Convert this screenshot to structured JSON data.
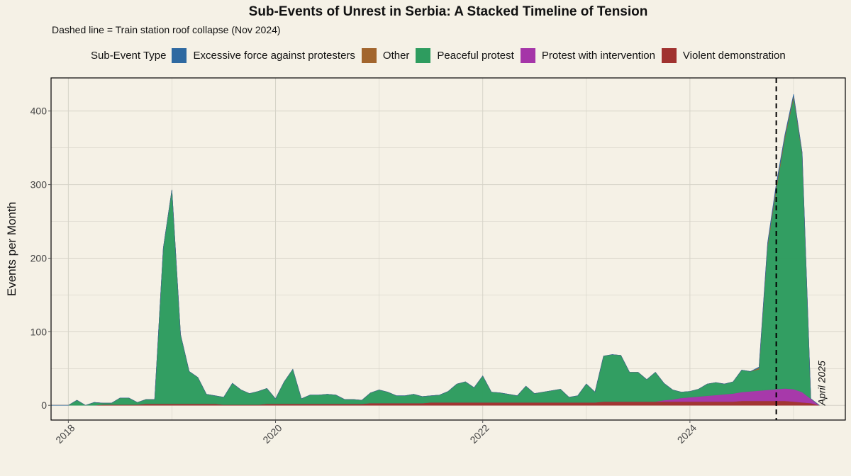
{
  "chart_data": {
    "type": "area",
    "stacked": true,
    "title": "Sub-Events of Unrest in Serbia: A Stacked Timeline of Tension",
    "subtitle": "Dashed line = Train station roof collapse (Nov 2024)",
    "xlabel": "",
    "ylabel": "Events per Month",
    "legend_title": "Sub-Event Type",
    "legend_position": "top",
    "grid": true,
    "x_range": [
      "2017-11",
      "2025-07"
    ],
    "ylim": [
      -20,
      445
    ],
    "x_ticks": [
      {
        "date": "2018-01",
        "label": "2018"
      },
      {
        "date": "2020-01",
        "label": "2020"
      },
      {
        "date": "2022-01",
        "label": "2022"
      },
      {
        "date": "2024-01",
        "label": "2024"
      }
    ],
    "y_ticks": [
      0,
      100,
      200,
      300,
      400
    ],
    "vline": {
      "date": "2024-11"
    },
    "annotation": {
      "date": "2025-04",
      "text": "April 2025"
    },
    "colors": {
      "background": "#f5f1e6",
      "grid": "#d6d3c8",
      "Excessive force against protesters": "#2e69a1",
      "Other": "#a2652d",
      "Peaceful protest": "#2e9c5f",
      "Protest with intervention": "#a535a8",
      "Violent demonstration": "#a0322f"
    },
    "stack_order": [
      "Violent demonstration",
      "Protest with intervention",
      "Peaceful protest",
      "Other",
      "Excessive force against protesters"
    ],
    "legend_order": [
      "Excessive force against protesters",
      "Other",
      "Peaceful protest",
      "Protest with intervention",
      "Violent demonstration"
    ],
    "x": [
      "2017-11",
      "2018-01",
      "2018-02",
      "2018-03",
      "2018-04",
      "2018-05",
      "2018-06",
      "2018-07",
      "2018-08",
      "2018-09",
      "2018-10",
      "2018-11",
      "2018-12",
      "2019-01",
      "2019-02",
      "2019-03",
      "2019-04",
      "2019-05",
      "2019-06",
      "2019-07",
      "2019-08",
      "2019-09",
      "2019-10",
      "2019-11",
      "2019-12",
      "2020-01",
      "2020-02",
      "2020-03",
      "2020-04",
      "2020-05",
      "2020-06",
      "2020-07",
      "2020-08",
      "2020-09",
      "2020-10",
      "2020-11",
      "2020-12",
      "2021-01",
      "2021-02",
      "2021-03",
      "2021-04",
      "2021-05",
      "2021-06",
      "2021-07",
      "2021-08",
      "2021-09",
      "2021-10",
      "2021-11",
      "2021-12",
      "2022-01",
      "2022-02",
      "2022-03",
      "2022-04",
      "2022-05",
      "2022-06",
      "2022-07",
      "2022-08",
      "2022-09",
      "2022-10",
      "2022-11",
      "2022-12",
      "2023-01",
      "2023-02",
      "2023-03",
      "2023-04",
      "2023-05",
      "2023-06",
      "2023-07",
      "2023-08",
      "2023-09",
      "2023-10",
      "2023-11",
      "2023-12",
      "2024-01",
      "2024-02",
      "2024-03",
      "2024-04",
      "2024-05",
      "2024-06",
      "2024-07",
      "2024-08",
      "2024-09",
      "2024-10",
      "2024-11",
      "2024-12",
      "2025-01",
      "2025-02",
      "2025-03",
      "2025-04"
    ],
    "series": [
      {
        "name": "Excessive force against protesters",
        "values": [
          0,
          0,
          0,
          0,
          0,
          0,
          0,
          0,
          0,
          0,
          0,
          0,
          0,
          0,
          0,
          0,
          0,
          0,
          0,
          0,
          0,
          0,
          0,
          0,
          0,
          0,
          0,
          0,
          0,
          0,
          0,
          0,
          0,
          0,
          0,
          0,
          0,
          0,
          0,
          0,
          0,
          0,
          0,
          0,
          0,
          0,
          0,
          0,
          0,
          0,
          0,
          0,
          0,
          0,
          0,
          0,
          0,
          0,
          0,
          0,
          0,
          0,
          0,
          0,
          0,
          0,
          0,
          0,
          0,
          0,
          0,
          0,
          0,
          0,
          0,
          0,
          0,
          0,
          0,
          0,
          0,
          1,
          2,
          4,
          2,
          2,
          1,
          0,
          0
        ]
      },
      {
        "name": "Other",
        "values": [
          0,
          0,
          0,
          0,
          0,
          0,
          0,
          0,
          0,
          0,
          0,
          0,
          0,
          0,
          0,
          0,
          0,
          0,
          0,
          0,
          0,
          0,
          0,
          0,
          0,
          0,
          0,
          0,
          0,
          0,
          0,
          0,
          0,
          0,
          0,
          0,
          0,
          0,
          0,
          0,
          0,
          0,
          0,
          0,
          0,
          0,
          0,
          0,
          0,
          0,
          0,
          0,
          0,
          0,
          0,
          0,
          0,
          0,
          0,
          0,
          0,
          0,
          0,
          0,
          0,
          0,
          0,
          0,
          0,
          0,
          0,
          0,
          0,
          0,
          0,
          0,
          0,
          0,
          0,
          0,
          0,
          2,
          3,
          4,
          3,
          3,
          2,
          0,
          0
        ]
      },
      {
        "name": "Peaceful protest",
        "values": [
          0,
          0,
          7,
          0,
          4,
          2,
          2,
          9,
          9,
          3,
          6,
          6,
          212,
          291,
          94,
          44,
          36,
          13,
          11,
          10,
          29,
          20,
          15,
          18,
          21,
          7,
          30,
          47,
          7,
          12,
          12,
          13,
          12,
          6,
          6,
          5,
          14,
          18,
          15,
          10,
          10,
          12,
          9,
          9,
          10,
          15,
          25,
          28,
          20,
          36,
          14,
          13,
          11,
          9,
          22,
          12,
          14,
          16,
          18,
          7,
          9,
          25,
          14,
          62,
          64,
          63,
          40,
          40,
          30,
          40,
          23,
          13,
          8,
          8,
          10,
          16,
          17,
          14,
          16,
          30,
          27,
          29,
          195,
          271,
          340,
          396,
          323,
          0,
          0
        ]
      },
      {
        "name": "Protest with intervention",
        "values": [
          0,
          0,
          0,
          0,
          0,
          0,
          0,
          0,
          0,
          0,
          0,
          0,
          0,
          0,
          0,
          0,
          0,
          0,
          0,
          0,
          0,
          0,
          0,
          0,
          0,
          0,
          0,
          0,
          0,
          0,
          0,
          0,
          0,
          0,
          0,
          0,
          0,
          0,
          0,
          0,
          0,
          0,
          0,
          0,
          0,
          0,
          0,
          0,
          0,
          0,
          0,
          0,
          0,
          0,
          0,
          0,
          0,
          0,
          0,
          0,
          0,
          0,
          0,
          0,
          0,
          0,
          0,
          0,
          0,
          0,
          2,
          3,
          5,
          6,
          7,
          8,
          9,
          10,
          11,
          12,
          13,
          14,
          15,
          16,
          17,
          17,
          14,
          6,
          0
        ]
      },
      {
        "name": "Violent demonstration",
        "values": [
          0,
          0,
          0,
          0,
          0,
          1,
          1,
          1,
          1,
          1,
          2,
          2,
          2,
          2,
          2,
          2,
          2,
          2,
          2,
          1,
          1,
          1,
          1,
          1,
          2,
          2,
          2,
          2,
          2,
          2,
          2,
          2,
          2,
          2,
          2,
          2,
          3,
          3,
          3,
          3,
          3,
          3,
          3,
          4,
          4,
          4,
          4,
          4,
          4,
          4,
          4,
          4,
          4,
          4,
          4,
          4,
          4,
          4,
          4,
          4,
          4,
          4,
          4,
          5,
          5,
          5,
          5,
          5,
          5,
          5,
          5,
          5,
          5,
          5,
          5,
          5,
          5,
          5,
          5,
          6,
          6,
          6,
          6,
          6,
          6,
          5,
          4,
          3,
          0
        ]
      }
    ]
  }
}
